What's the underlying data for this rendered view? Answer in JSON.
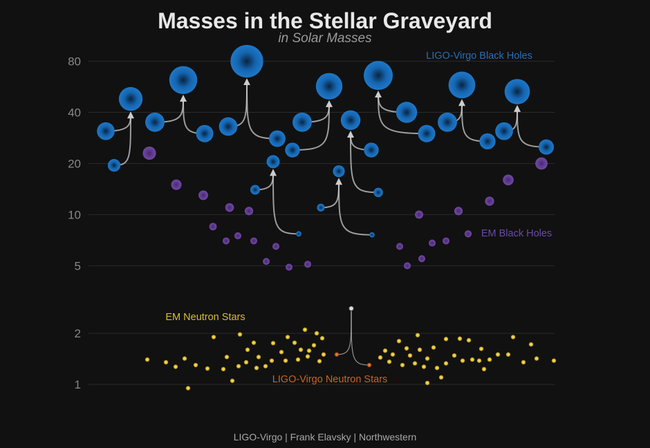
{
  "chart_data": {
    "type": "scatter",
    "title": "Masses in the Stellar Graveyard",
    "subtitle": "in Solar Masses",
    "credit": "LIGO-Virgo | Frank Elavsky | Northwestern",
    "y_scale": "log",
    "ylim": [
      0.7,
      110
    ],
    "y_ticks": [
      1,
      2,
      5,
      10,
      20,
      40,
      80
    ],
    "grid": true,
    "colors": {
      "background": "#111111",
      "grid": "#2a2a2a",
      "tick_label": "#888888",
      "ligo_bh": "#1f78c8",
      "em_bh": "#7a4fb0",
      "em_ns": "#e0c234",
      "ligo_ns": "#d2691e",
      "arrow": "#cccccc"
    },
    "series": [
      {
        "name": "LIGO-Virgo Black Holes",
        "mergers": [
          {
            "m1": 31,
            "m2": 19.5,
            "final": 48
          },
          {
            "m1": 35,
            "m2": 30,
            "final": 62
          },
          {
            "m1": 33,
            "m2": 28,
            "final": 80
          },
          {
            "m1": 14,
            "m2": 7.7,
            "final": 20.5
          },
          {
            "m1": 35,
            "m2": 24,
            "final": 57
          },
          {
            "m1": 11,
            "m2": 7.6,
            "final": 18
          },
          {
            "m1": 24,
            "m2": 13.5,
            "final": 36
          },
          {
            "m1": 40,
            "m2": 30,
            "final": 66
          },
          {
            "m1": 27,
            "m2": 35,
            "final": 58
          },
          {
            "m1": 25,
            "m2": 31,
            "final": 53
          }
        ]
      },
      {
        "name": "EM Black Holes",
        "points": [
          {
            "x": 216,
            "m": 23
          },
          {
            "x": 255,
            "m": 15
          },
          {
            "x": 294,
            "m": 13
          },
          {
            "x": 308,
            "m": 8.5
          },
          {
            "x": 327,
            "m": 7
          },
          {
            "x": 332,
            "m": 11
          },
          {
            "x": 344,
            "m": 7.5
          },
          {
            "x": 360,
            "m": 10.5
          },
          {
            "x": 367,
            "m": 7
          },
          {
            "x": 385,
            "m": 5.3
          },
          {
            "x": 399,
            "m": 6.5
          },
          {
            "x": 418,
            "m": 4.9
          },
          {
            "x": 445,
            "m": 5.1
          },
          {
            "x": 578,
            "m": 6.5
          },
          {
            "x": 589,
            "m": 5
          },
          {
            "x": 606,
            "m": 10
          },
          {
            "x": 610,
            "m": 5.5
          },
          {
            "x": 625,
            "m": 6.8
          },
          {
            "x": 645,
            "m": 7
          },
          {
            "x": 663,
            "m": 10.5
          },
          {
            "x": 677,
            "m": 7.7
          },
          {
            "x": 708,
            "m": 12
          },
          {
            "x": 735,
            "m": 16
          },
          {
            "x": 783,
            "m": 20
          }
        ]
      },
      {
        "name": "EM Neutron Stars",
        "points": [
          {
            "x": 213,
            "m": 1.4
          },
          {
            "x": 240,
            "m": 1.35
          },
          {
            "x": 254,
            "m": 1.27
          },
          {
            "x": 267,
            "m": 1.42
          },
          {
            "x": 272,
            "m": 0.95
          },
          {
            "x": 283,
            "m": 1.3
          },
          {
            "x": 300,
            "m": 1.24
          },
          {
            "x": 309,
            "m": 1.9
          },
          {
            "x": 323,
            "m": 1.23
          },
          {
            "x": 328,
            "m": 1.45
          },
          {
            "x": 336,
            "m": 1.05
          },
          {
            "x": 345,
            "m": 1.28
          },
          {
            "x": 347,
            "m": 1.97
          },
          {
            "x": 356,
            "m": 1.35
          },
          {
            "x": 358,
            "m": 1.6
          },
          {
            "x": 367,
            "m": 1.76
          },
          {
            "x": 371,
            "m": 1.25
          },
          {
            "x": 374,
            "m": 1.45
          },
          {
            "x": 384,
            "m": 1.28
          },
          {
            "x": 393,
            "m": 1.38
          },
          {
            "x": 395,
            "m": 1.75
          },
          {
            "x": 407,
            "m": 1.55
          },
          {
            "x": 413,
            "m": 1.38
          },
          {
            "x": 416,
            "m": 1.9
          },
          {
            "x": 426,
            "m": 1.76
          },
          {
            "x": 431,
            "m": 1.4
          },
          {
            "x": 435,
            "m": 1.6
          },
          {
            "x": 441,
            "m": 2.1
          },
          {
            "x": 445,
            "m": 1.46
          },
          {
            "x": 447,
            "m": 1.58
          },
          {
            "x": 454,
            "m": 1.7
          },
          {
            "x": 458,
            "m": 2
          },
          {
            "x": 462,
            "m": 1.37
          },
          {
            "x": 466,
            "m": 1.87
          },
          {
            "x": 468,
            "m": 1.5
          },
          {
            "x": 550,
            "m": 1.44
          },
          {
            "x": 557,
            "m": 1.58
          },
          {
            "x": 563,
            "m": 1.36
          },
          {
            "x": 568,
            "m": 1.5
          },
          {
            "x": 577,
            "m": 1.8
          },
          {
            "x": 582,
            "m": 1.3
          },
          {
            "x": 588,
            "m": 1.63
          },
          {
            "x": 593,
            "m": 1.48
          },
          {
            "x": 600,
            "m": 1.33
          },
          {
            "x": 604,
            "m": 1.95
          },
          {
            "x": 607,
            "m": 1.6
          },
          {
            "x": 613,
            "m": 1.27
          },
          {
            "x": 618,
            "m": 1.02
          },
          {
            "x": 618,
            "m": 1.42
          },
          {
            "x": 627,
            "m": 1.65
          },
          {
            "x": 632,
            "m": 1.25
          },
          {
            "x": 638,
            "m": 1.1
          },
          {
            "x": 645,
            "m": 1.33
          },
          {
            "x": 645,
            "m": 1.85
          },
          {
            "x": 657,
            "m": 1.48
          },
          {
            "x": 665,
            "m": 1.86
          },
          {
            "x": 669,
            "m": 1.38
          },
          {
            "x": 678,
            "m": 1.82
          },
          {
            "x": 683,
            "m": 1.4
          },
          {
            "x": 693,
            "m": 1.38
          },
          {
            "x": 696,
            "m": 1.62
          },
          {
            "x": 700,
            "m": 1.23
          },
          {
            "x": 708,
            "m": 1.4
          },
          {
            "x": 720,
            "m": 1.5
          },
          {
            "x": 735,
            "m": 1.5
          },
          {
            "x": 742,
            "m": 1.9
          },
          {
            "x": 757,
            "m": 1.35
          },
          {
            "x": 768,
            "m": 1.72
          },
          {
            "x": 776,
            "m": 1.42
          },
          {
            "x": 801,
            "m": 1.38
          }
        ]
      },
      {
        "name": "LIGO-Virgo Neutron Stars",
        "mergers": [
          {
            "m1": 1.5,
            "m2": 1.3,
            "final": 2.8
          }
        ]
      }
    ]
  }
}
